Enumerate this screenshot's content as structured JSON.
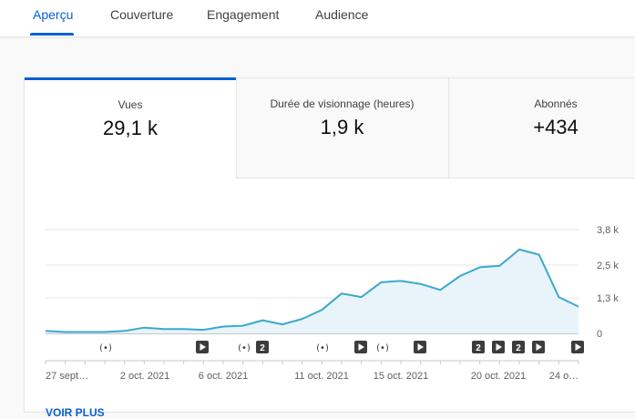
{
  "tabs": [
    {
      "label": "Aperçu",
      "active": true
    },
    {
      "label": "Couverture",
      "active": false
    },
    {
      "label": "Engagement",
      "active": false
    },
    {
      "label": "Audience",
      "active": false
    }
  ],
  "metrics": [
    {
      "label": "Vues",
      "value": "29,1 k",
      "active": true
    },
    {
      "label": "Durée de visionnage (heures)",
      "value": "1,9 k",
      "active": false
    },
    {
      "label": "Abonnés",
      "value": "+434",
      "active": false
    }
  ],
  "chart_data": {
    "type": "area",
    "series": [
      {
        "values": [
          90,
          50,
          50,
          50,
          90,
          210,
          160,
          160,
          130,
          250,
          280,
          480,
          330,
          530,
          860,
          1460,
          1330,
          1870,
          1920,
          1810,
          1590,
          2100,
          2420,
          2470,
          3070,
          2880,
          1330,
          980
        ]
      }
    ],
    "ylim": [
      0,
      3800
    ],
    "y_ticks": [
      "3,8 k",
      "2,5 k",
      "1,3 k",
      "0"
    ],
    "x_tick_labels": [
      "27 sept…",
      "2 oct. 2021",
      "6 oct. 2021",
      "11 oct. 2021",
      "15 oct. 2021",
      "20 oct. 2021",
      "24 o…"
    ],
    "line_color": "#3ba9cc",
    "fill_color": "#e8f4fa",
    "grid": true,
    "event_markers": [
      {
        "type": "live",
        "label": ""
      },
      {
        "type": "video",
        "label": ""
      },
      {
        "type": "live",
        "label": ""
      },
      {
        "type": "count",
        "label": "2"
      },
      {
        "type": "live",
        "label": ""
      },
      {
        "type": "video",
        "label": ""
      },
      {
        "type": "live",
        "label": ""
      },
      {
        "type": "video",
        "label": ""
      },
      {
        "type": "count",
        "label": "2"
      },
      {
        "type": "video",
        "label": ""
      },
      {
        "type": "count",
        "label": "2"
      },
      {
        "type": "video",
        "label": ""
      },
      {
        "type": "video",
        "label": ""
      }
    ]
  },
  "see_more_label": "VOIR PLUS"
}
